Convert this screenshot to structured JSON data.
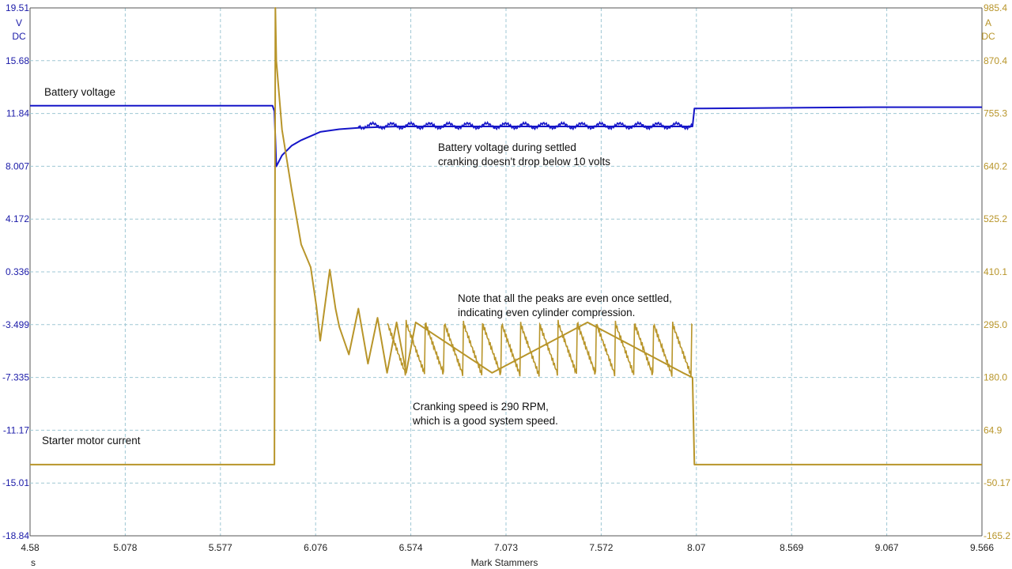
{
  "chart_data": {
    "type": "line",
    "x_axis": {
      "unit": "s",
      "range": [
        4.58,
        9.566
      ],
      "ticks": [
        "4.58",
        "5.078",
        "5.577",
        "6.076",
        "6.574",
        "7.073",
        "7.572",
        "8.07",
        "8.569",
        "9.067",
        "9.566"
      ]
    },
    "y_axis_left": {
      "unit_lines": [
        "V",
        "DC"
      ],
      "range": [
        -18.84,
        19.51
      ],
      "ticks": [
        "19.51",
        "15.68",
        "11.84",
        "8.007",
        "4.172",
        "0.336",
        "-3.499",
        "-7.335",
        "-11.17",
        "-15.01",
        "-18.84"
      ]
    },
    "y_axis_right": {
      "unit_lines": [
        "A",
        "DC"
      ],
      "range": [
        -165.2,
        985.4
      ],
      "ticks": [
        "985.4",
        "870.4",
        "755.3",
        "640.2",
        "525.2",
        "410.1",
        "295.0",
        "180.0",
        "64.9",
        "-50.17",
        "-165.2"
      ]
    },
    "grid": true,
    "credit": "Mark Stammers",
    "series": [
      {
        "name": "Battery voltage",
        "axis": "left",
        "color": "#1515c8",
        "points": [
          [
            4.58,
            12.4
          ],
          [
            5.85,
            12.4
          ],
          [
            5.86,
            12.0
          ],
          [
            5.87,
            8.0
          ],
          [
            5.9,
            8.8
          ],
          [
            5.95,
            9.5
          ],
          [
            6.0,
            9.9
          ],
          [
            6.05,
            10.2
          ],
          [
            6.1,
            10.5
          ],
          [
            6.2,
            10.7
          ],
          [
            6.3,
            10.8
          ],
          [
            6.5,
            10.9
          ],
          [
            7.0,
            10.9
          ],
          [
            7.5,
            10.9
          ],
          [
            8.0,
            10.9
          ],
          [
            8.05,
            10.9
          ],
          [
            8.06,
            12.2
          ],
          [
            9.0,
            12.3
          ],
          [
            9.566,
            12.3
          ]
        ]
      },
      {
        "name": "Starter motor current",
        "axis": "right",
        "color": "#b8952a",
        "points": [
          [
            4.58,
            -10.0
          ],
          [
            5.86,
            -10.0
          ],
          [
            5.865,
            985.4
          ],
          [
            5.87,
            870.0
          ],
          [
            5.9,
            720.0
          ],
          [
            5.95,
            590.0
          ],
          [
            6.0,
            470.0
          ],
          [
            6.05,
            420.0
          ],
          [
            6.08,
            335.0
          ],
          [
            6.1,
            260.0
          ],
          [
            6.15,
            415.0
          ],
          [
            6.18,
            330.0
          ],
          [
            6.2,
            290.0
          ],
          [
            6.25,
            230.0
          ],
          [
            6.3,
            330.0
          ],
          [
            6.35,
            210.0
          ],
          [
            6.4,
            310.0
          ],
          [
            6.45,
            190.0
          ],
          [
            6.5,
            300.0
          ],
          [
            6.55,
            190.0
          ],
          [
            6.6,
            300.0
          ],
          [
            7.0,
            190.0
          ],
          [
            7.5,
            300.0
          ],
          [
            8.0,
            190.0
          ],
          [
            8.05,
            180.0
          ],
          [
            8.06,
            -10.0
          ],
          [
            9.566,
            -10.0
          ]
        ]
      }
    ],
    "annotations": [
      {
        "lines": [
          "Battery voltage"
        ],
        "ref": "voltage-label"
      },
      {
        "lines": [
          "Starter motor current"
        ],
        "ref": "current-label"
      },
      {
        "lines": [
          "Battery voltage during settled",
          "cranking doesn't drop below 10 volts"
        ],
        "ref": "voltage-note"
      },
      {
        "lines": [
          "Note that all the peaks are even once settled,",
          "indicating even cylinder compression."
        ],
        "ref": "peaks-note"
      },
      {
        "lines": [
          "Cranking speed is 290 RPM,",
          "which is a good system speed."
        ],
        "ref": "speed-note"
      }
    ]
  }
}
